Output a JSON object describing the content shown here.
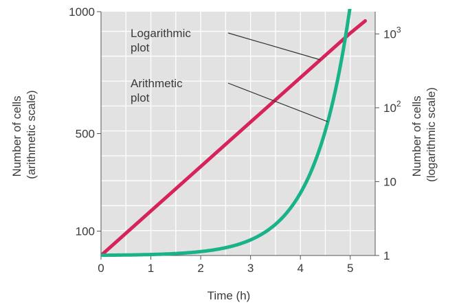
{
  "chart_data": {
    "type": "line",
    "xlabel": "Time (h)",
    "ylabel_left": [
      "Number of cells",
      "(arithmetic scale)"
    ],
    "ylabel_right": [
      "Number of cells",
      "(logarithmic scale)"
    ],
    "xlim": [
      0,
      5.5
    ],
    "x_ticks": [
      0,
      1,
      2,
      3,
      4,
      5
    ],
    "x_tick_labels": [
      "0",
      "1",
      "2",
      "3",
      "4",
      "5"
    ],
    "ylim_left": [
      0,
      1000
    ],
    "left_ticks": [
      {
        "value": 100,
        "label": "100"
      },
      {
        "value": 500,
        "label": "500"
      },
      {
        "value": 1000,
        "label": "1000"
      }
    ],
    "ylim_right_log": [
      1,
      2000
    ],
    "right_ticks": [
      {
        "value": 1,
        "label": "1",
        "sup": ""
      },
      {
        "value": 10,
        "label": "10",
        "sup": ""
      },
      {
        "value": 100,
        "label": "10",
        "sup": "2"
      },
      {
        "value": 1000,
        "label": "10",
        "sup": "3"
      }
    ],
    "grid": true,
    "series": [
      {
        "name": "Logarithmic plot",
        "axis": "right-log",
        "color": "#d6245a",
        "x": [
          0,
          1,
          2,
          3,
          4,
          5,
          5.3
        ],
        "y": [
          1,
          4,
          16,
          64,
          256,
          1024,
          1500
        ]
      },
      {
        "name": "Arithmetic plot",
        "axis": "left-linear",
        "color": "#1ab389",
        "x": [
          0,
          0.5,
          1,
          1.5,
          2,
          2.5,
          3,
          3.25,
          3.5,
          3.75,
          4,
          4.25,
          4.5,
          4.75,
          5,
          5.1
        ],
        "y": [
          1,
          1,
          4,
          4,
          16,
          16,
          64,
          64,
          128,
          128,
          256,
          256,
          512,
          512,
          1024,
          1024
        ]
      }
    ],
    "annotations": [
      {
        "lines": [
          "Logarithmic",
          "plot"
        ],
        "target": "Logarithmic plot",
        "target_x": 4.4
      },
      {
        "lines": [
          "Arithmetic",
          "plot"
        ],
        "target": "Arithmetic plot",
        "target_x": 4.55
      }
    ],
    "colors": {
      "plot_background": "#e2e2e2",
      "grid": "#ffffff",
      "axis": "#555555",
      "text": "#3a3a3a"
    }
  }
}
